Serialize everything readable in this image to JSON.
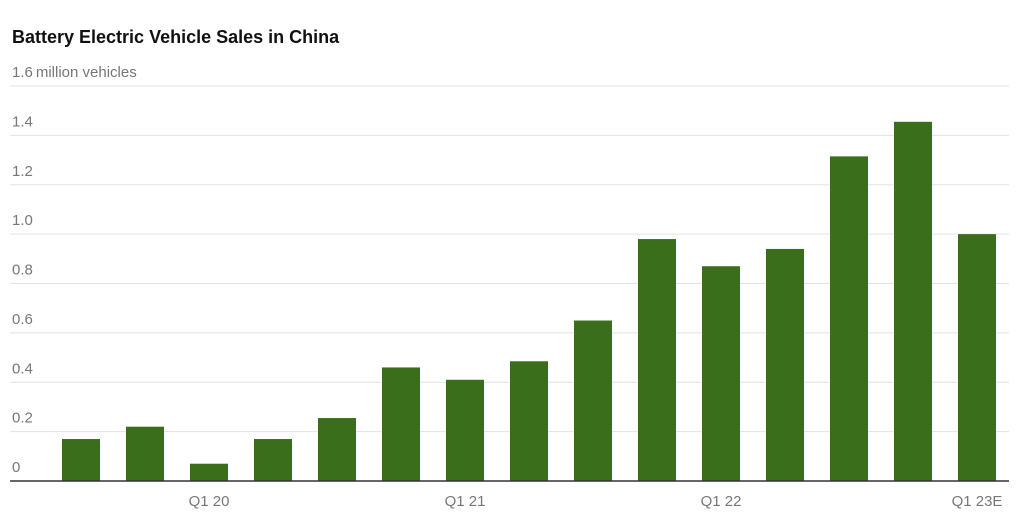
{
  "chart_data": {
    "type": "bar",
    "title": "Battery Electric Vehicle Sales in China",
    "y_axis_label": "million vehicles",
    "categories": [
      null,
      null,
      "Q1 20",
      null,
      null,
      null,
      "Q1 21",
      null,
      null,
      null,
      "Q1 22",
      null,
      null,
      null,
      "Q1 23E"
    ],
    "values": [
      0.17,
      0.22,
      0.07,
      0.17,
      0.255,
      0.46,
      0.41,
      0.485,
      0.65,
      0.98,
      0.87,
      0.94,
      1.315,
      1.455,
      1.0
    ],
    "color": "#3b6e1a",
    "ylim": [
      0,
      1.6
    ],
    "yticks": [
      0,
      0.2,
      0.4,
      0.6,
      0.8,
      {
        "value": 1.0,
        "label": "1.0"
      },
      1.2,
      1.4,
      1.6
    ],
    "grid": true
  }
}
